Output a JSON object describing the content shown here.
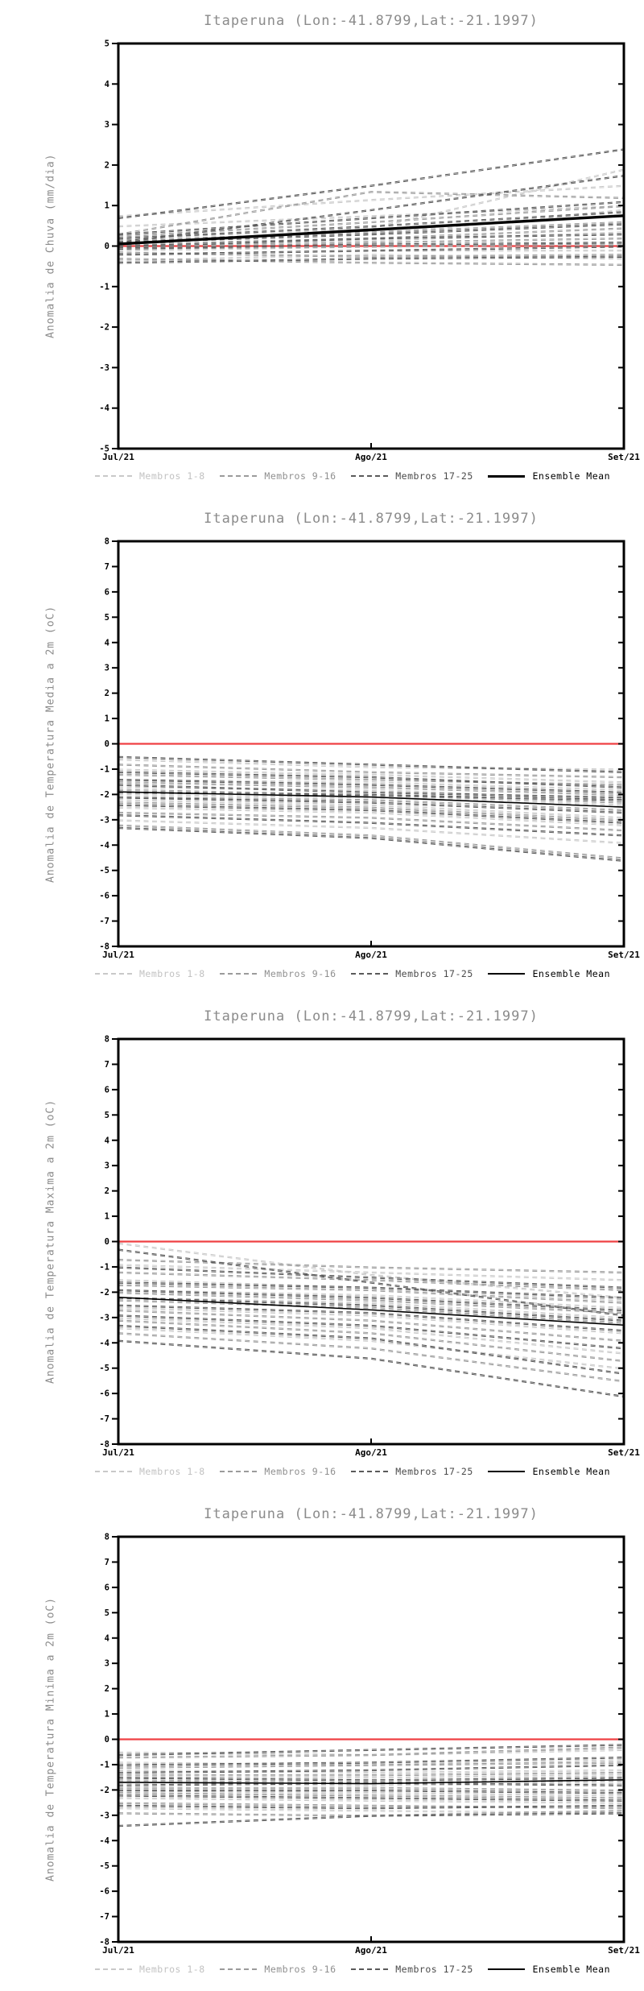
{
  "page": {
    "background": "#ffffff"
  },
  "colors": {
    "members_1_8": "#c9c9c9",
    "members_9_16": "#9b9b9b",
    "members_17_25": "#5a5a5a",
    "ensemble_mean": "#000000",
    "zero_line": "#ef4043",
    "axis": "#000000",
    "title_text": "#8b8b8b"
  },
  "legend": {
    "items": [
      {
        "label": "Membros 1-8",
        "color": "#c9c9c9",
        "text_color": "#c2c2c2",
        "style": "dashed"
      },
      {
        "label": "Membros 9-16",
        "color": "#9b9b9b",
        "text_color": "#8f8f8f",
        "style": "dashed"
      },
      {
        "label": "Membros 17-25",
        "color": "#5a5a5a",
        "text_color": "#4a4a4a",
        "style": "dashed"
      },
      {
        "label": "Ensemble Mean",
        "color": "#000000",
        "text_color": "#000000",
        "style": "solid"
      }
    ]
  },
  "chart_data": [
    {
      "type": "line",
      "title": "Itaperuna (Lon:-41.8799,Lat:-21.1997)",
      "ylabel": "Anomalia de Chuva (mm/dia)",
      "x": [
        "Jul/21",
        "Ago/21",
        "Set/21"
      ],
      "ylim": [
        -5,
        5
      ],
      "ytick_step": 1,
      "zero_line": 0,
      "mean_style": "thick",
      "members_1_8": [
        [
          0.75,
          1.15,
          1.5
        ],
        [
          0.5,
          0.75,
          1.0
        ],
        [
          0.2,
          0.45,
          1.9
        ],
        [
          0.1,
          0.3,
          0.9
        ],
        [
          0.0,
          0.15,
          0.35
        ],
        [
          -0.1,
          0.0,
          0.1
        ],
        [
          -0.2,
          -0.1,
          -0.1
        ],
        [
          -0.35,
          -0.2,
          -0.3
        ]
      ],
      "members_9_16": [
        [
          0.3,
          1.35,
          1.2
        ],
        [
          0.25,
          0.6,
          1.0
        ],
        [
          0.15,
          0.35,
          0.6
        ],
        [
          0.05,
          0.2,
          0.45
        ],
        [
          0.0,
          0.1,
          0.2
        ],
        [
          -0.05,
          0.0,
          0.05
        ],
        [
          -0.15,
          -0.25,
          -0.2
        ],
        [
          -0.3,
          -0.4,
          -0.45
        ]
      ],
      "members_17_25": [
        [
          0.7,
          1.5,
          2.4
        ],
        [
          0.1,
          0.9,
          1.75
        ],
        [
          0.3,
          0.7,
          1.1
        ],
        [
          0.2,
          0.5,
          0.85
        ],
        [
          0.1,
          0.3,
          0.55
        ],
        [
          0.0,
          0.2,
          0.3
        ],
        [
          -0.05,
          0.05,
          0.1
        ],
        [
          -0.2,
          -0.1,
          0.0
        ],
        [
          -0.4,
          -0.3,
          -0.25
        ]
      ],
      "ensemble_mean": [
        0.05,
        0.4,
        0.75
      ]
    },
    {
      "type": "line",
      "title": "Itaperuna (Lon:-41.8799,Lat:-21.1997)",
      "ylabel": "Anomalia de Temperatura Media a 2m (oC)",
      "x": [
        "Jul/21",
        "Ago/21",
        "Set/21"
      ],
      "ylim": [
        -8,
        8
      ],
      "ytick_step": 1,
      "zero_line": 0,
      "mean_style": "thin",
      "members_1_8": [
        [
          -0.6,
          -0.9,
          -1.0
        ],
        [
          -1.0,
          -1.2,
          -1.5
        ],
        [
          -1.4,
          -1.5,
          -1.8
        ],
        [
          -1.7,
          -1.8,
          -2.2
        ],
        [
          -2.0,
          -2.1,
          -2.4
        ],
        [
          -2.2,
          -2.4,
          -2.9
        ],
        [
          -2.5,
          -2.7,
          -3.2
        ],
        [
          -3.0,
          -3.3,
          -3.9
        ]
      ],
      "members_9_16": [
        [
          -0.8,
          -1.1,
          -1.3
        ],
        [
          -1.2,
          -1.4,
          -1.6
        ],
        [
          -1.5,
          -1.7,
          -2.0
        ],
        [
          -1.8,
          -2.0,
          -2.3
        ],
        [
          -2.1,
          -2.2,
          -2.6
        ],
        [
          -2.3,
          -2.5,
          -3.0
        ],
        [
          -2.7,
          -2.9,
          -3.4
        ],
        [
          -3.2,
          -3.6,
          -4.5
        ]
      ],
      "members_17_25": [
        [
          -0.5,
          -0.8,
          -1.1
        ],
        [
          -1.1,
          -1.3,
          -1.7
        ],
        [
          -1.4,
          -1.6,
          -1.9
        ],
        [
          -1.6,
          -1.9,
          -2.1
        ],
        [
          -1.9,
          -2.0,
          -2.2
        ],
        [
          -2.1,
          -2.3,
          -2.7
        ],
        [
          -2.4,
          -2.6,
          -3.1
        ],
        [
          -2.8,
          -3.1,
          -3.6
        ],
        [
          -3.3,
          -3.7,
          -4.6
        ]
      ],
      "ensemble_mean": [
        -1.9,
        -2.1,
        -2.5
      ]
    },
    {
      "type": "line",
      "title": "Itaperuna (Lon:-41.8799,Lat:-21.1997)",
      "ylabel": "Anomalia de Temperatura Maxima a 2m (oC)",
      "x": [
        "Jul/21",
        "Ago/21",
        "Set/21"
      ],
      "ylim": [
        -8,
        8
      ],
      "ytick_step": 1,
      "zero_line": 0,
      "mean_style": "thin",
      "members_1_8": [
        [
          -0.05,
          -1.3,
          -2.2
        ],
        [
          -0.9,
          -1.2,
          -1.5
        ],
        [
          -1.5,
          -1.8,
          -2.3
        ],
        [
          -1.9,
          -2.1,
          -2.6
        ],
        [
          -2.2,
          -2.4,
          -3.0
        ],
        [
          -2.6,
          -2.9,
          -3.6
        ],
        [
          -3.0,
          -3.4,
          -4.4
        ],
        [
          -3.4,
          -3.9,
          -5.0
        ]
      ],
      "members_9_16": [
        [
          -0.7,
          -1.0,
          -1.2
        ],
        [
          -1.2,
          -1.5,
          -1.9
        ],
        [
          -1.7,
          -1.9,
          -2.4
        ],
        [
          -2.0,
          -2.3,
          -2.8
        ],
        [
          -2.3,
          -2.6,
          -3.2
        ],
        [
          -2.7,
          -3.1,
          -3.9
        ],
        [
          -3.1,
          -3.6,
          -4.7
        ],
        [
          -3.6,
          -4.2,
          -5.5
        ]
      ],
      "members_17_25": [
        [
          -0.3,
          -1.6,
          -2.9
        ],
        [
          -1.0,
          -1.4,
          -1.8
        ],
        [
          -1.6,
          -1.8,
          -2.2
        ],
        [
          -1.9,
          -2.2,
          -2.7
        ],
        [
          -2.2,
          -2.5,
          -3.1
        ],
        [
          -2.5,
          -2.8,
          -3.5
        ],
        [
          -2.9,
          -3.3,
          -4.2
        ],
        [
          -3.3,
          -3.8,
          -5.2
        ],
        [
          -3.9,
          -4.6,
          -6.1
        ]
      ],
      "ensemble_mean": [
        -2.2,
        -2.7,
        -3.3
      ]
    },
    {
      "type": "line",
      "title": "Itaperuna (Lon:-41.8799,Lat:-21.1997)",
      "ylabel": "Anomalia de Temperatura Minima a 2m (oC)",
      "x": [
        "Jul/21",
        "Ago/21",
        "Set/21"
      ],
      "ylim": [
        -8,
        8
      ],
      "ytick_step": 1,
      "zero_line": 0,
      "mean_style": "thin",
      "members_1_8": [
        [
          -0.5,
          -0.6,
          -0.4
        ],
        [
          -0.9,
          -1.0,
          -0.8
        ],
        [
          -1.2,
          -1.3,
          -1.2
        ],
        [
          -1.5,
          -1.5,
          -1.4
        ],
        [
          -1.7,
          -1.8,
          -1.7
        ],
        [
          -2.0,
          -2.1,
          -2.2
        ],
        [
          -2.3,
          -2.4,
          -2.5
        ],
        [
          -2.7,
          -2.8,
          -2.9
        ]
      ],
      "members_9_16": [
        [
          -0.7,
          -0.6,
          -0.3
        ],
        [
          -1.1,
          -1.0,
          -0.9
        ],
        [
          -1.4,
          -1.4,
          -1.3
        ],
        [
          -1.6,
          -1.7,
          -1.6
        ],
        [
          -1.9,
          -1.9,
          -2.0
        ],
        [
          -2.1,
          -2.2,
          -2.3
        ],
        [
          -2.5,
          -2.6,
          -2.7
        ],
        [
          -2.9,
          -3.0,
          -2.8
        ]
      ],
      "members_17_25": [
        [
          -0.6,
          -0.4,
          -0.2
        ],
        [
          -1.0,
          -0.9,
          -0.7
        ],
        [
          -1.3,
          -1.2,
          -1.0
        ],
        [
          -1.5,
          -1.6,
          -1.5
        ],
        [
          -1.8,
          -1.7,
          -1.8
        ],
        [
          -2.0,
          -2.0,
          -2.1
        ],
        [
          -2.2,
          -2.3,
          -2.4
        ],
        [
          -2.6,
          -2.7,
          -2.6
        ],
        [
          -3.4,
          -3.0,
          -2.9
        ]
      ],
      "ensemble_mean": [
        -1.7,
        -1.75,
        -1.6
      ]
    }
  ]
}
